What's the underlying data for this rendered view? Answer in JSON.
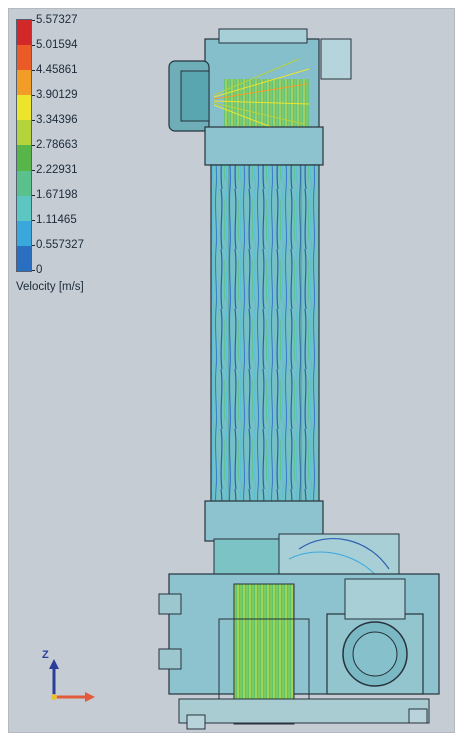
{
  "legend": {
    "title": "Velocity [m/s]",
    "tick_labels": [
      "5.57327",
      "5.01594",
      "4.45861",
      "3.90129",
      "3.34396",
      "2.78663",
      "2.22931",
      "1.67198",
      "1.11465",
      "0.557327",
      "0"
    ],
    "colors": [
      "#d3282a",
      "#ea5b27",
      "#f19d28",
      "#ede52c",
      "#b4d33d",
      "#57b54a",
      "#5ac08c",
      "#5cc6c3",
      "#3aa8dd",
      "#2a6fc2",
      "#243d9b"
    ]
  },
  "triad": {
    "axis_z": "Z"
  },
  "model": {
    "glass_color": "#8fc7d0",
    "outline_color": "#27323b"
  }
}
